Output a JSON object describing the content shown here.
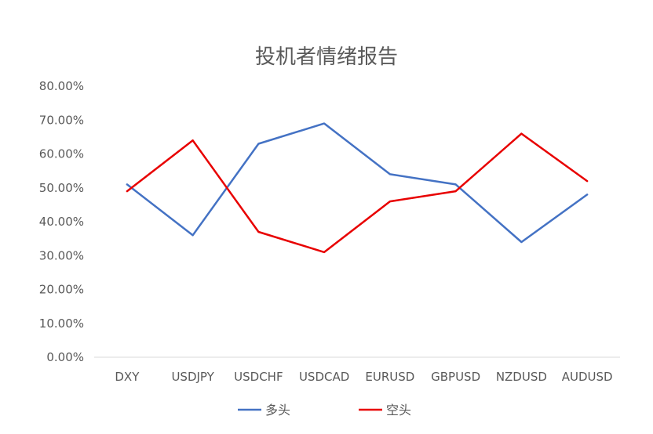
{
  "chart_data": {
    "type": "line",
    "title": "投机者情绪报告",
    "categories": [
      "DXY",
      "USDJPY",
      "USDCHF",
      "USDCAD",
      "EURUSD",
      "GBPUSD",
      "NZDUSD",
      "AUDUSD"
    ],
    "series": [
      {
        "name": "多头",
        "color": "#4472C4",
        "values": [
          51,
          36,
          63,
          69,
          54,
          51,
          34,
          48
        ]
      },
      {
        "name": "空头",
        "color": "#E80000",
        "values": [
          49,
          64,
          37,
          31,
          46,
          49,
          66,
          52
        ]
      }
    ],
    "y_ticks": [
      "0.00%",
      "10.00%",
      "20.00%",
      "30.00%",
      "40.00%",
      "50.00%",
      "60.00%",
      "70.00%",
      "80.00%"
    ],
    "ylim": [
      0,
      80
    ],
    "grid": false,
    "legend_position": "bottom"
  }
}
